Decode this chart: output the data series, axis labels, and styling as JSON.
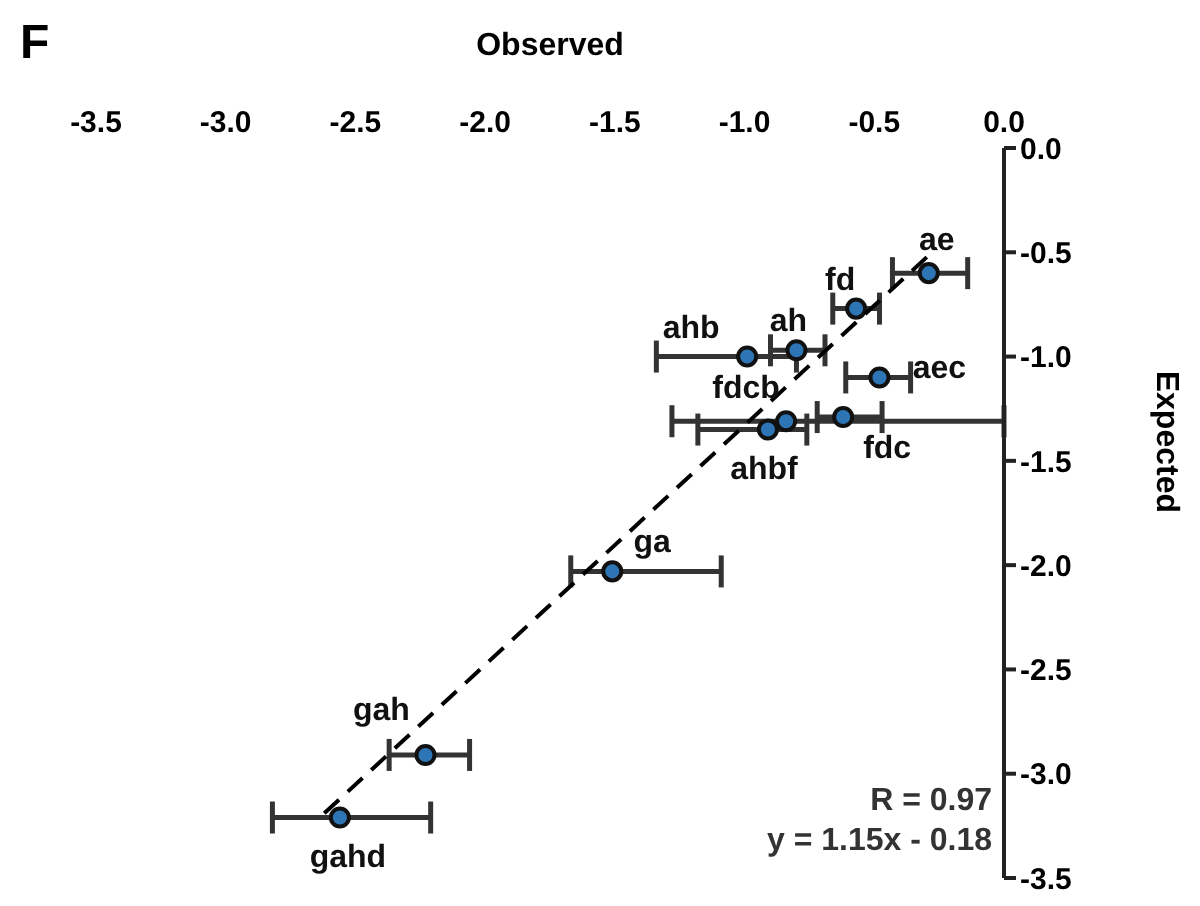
{
  "chart_data": {
    "type": "scatter",
    "title": "F",
    "xlabel": "Observed",
    "ylabel": "Expected",
    "xlim": [
      -3.5,
      0
    ],
    "xticks": [
      {
        "value": -3.5,
        "label": "-3.5"
      },
      {
        "value": -3,
        "label": "-3.0"
      },
      {
        "value": -2.5,
        "label": "-2.5"
      },
      {
        "value": -2,
        "label": "-2.0"
      },
      {
        "value": -1.5,
        "label": "-1.5"
      },
      {
        "value": -1,
        "label": "-1.0"
      },
      {
        "value": -0.5,
        "label": "-0.5"
      },
      {
        "value": 0,
        "label": "0.0"
      }
    ],
    "ylim": [
      -3.5,
      0
    ],
    "yticks": [
      {
        "value": 0,
        "label": "0.0"
      },
      {
        "value": -0.5,
        "label": "-0.5"
      },
      {
        "value": -1,
        "label": "-1.0"
      },
      {
        "value": -1.5,
        "label": "-1.5"
      },
      {
        "value": -2,
        "label": "-2.0"
      },
      {
        "value": -2.5,
        "label": "-2.5"
      },
      {
        "value": -3,
        "label": "-3.0"
      },
      {
        "value": -3.5,
        "label": "-3.5"
      }
    ],
    "series": [
      {
        "color": "#2e75b6",
        "marker": "circle",
        "x": [
          -0.29,
          -0.57,
          -0.8,
          -0.99,
          -0.48,
          -0.62,
          -0.84,
          -0.91,
          -1.51,
          -2.23,
          -2.56
        ],
        "values": [
          -0.6,
          -0.77,
          -0.97,
          -1.0,
          -1.1,
          -1.29,
          -1.31,
          -1.35,
          -2.03,
          -2.91,
          -3.21
        ],
        "xerrors": [
          [
            -0.43,
            -0.14
          ],
          [
            -0.66,
            -0.48
          ],
          [
            -0.9,
            -0.69
          ],
          [
            -1.34,
            -0.8
          ],
          [
            -0.61,
            -0.36
          ],
          [
            -0.72,
            -0.47
          ],
          [
            -1.28,
            0
          ],
          [
            -1.18,
            -0.76
          ],
          [
            -1.67,
            -1.09
          ],
          [
            -2.37,
            -2.06
          ],
          [
            -2.82,
            -2.21
          ]
        ]
      },
      {
        "type": "line",
        "color": "#000000",
        "line_style": "dashed",
        "x": [
          -2.62,
          -0.26
        ],
        "values": [
          -3.19,
          -0.48
        ]
      }
    ],
    "annotations": [
      {
        "text": "ae",
        "x": -0.29,
        "y": -0.6
      },
      {
        "text": "fd",
        "x": -0.57,
        "y": -0.77
      },
      {
        "text": "ah",
        "x": -0.8,
        "y": -0.97
      },
      {
        "text": "ahb",
        "x": -0.99,
        "y": -1.0
      },
      {
        "text": "aec",
        "x": -0.48,
        "y": -1.1
      },
      {
        "text": "fdc",
        "x": -0.62,
        "y": -1.29
      },
      {
        "text": "fdcb",
        "x": -0.84,
        "y": -1.31
      },
      {
        "text": "ahbf",
        "x": -0.91,
        "y": -1.35
      },
      {
        "text": "ga",
        "x": -1.51,
        "y": -2.03
      },
      {
        "text": "gah",
        "x": -2.23,
        "y": -2.91
      },
      {
        "text": "gahd",
        "x": -2.56,
        "y": -3.21
      },
      "R = 0.97",
      "y = 1.15x - 0.18"
    ],
    "tick_labels": "xy"
  }
}
